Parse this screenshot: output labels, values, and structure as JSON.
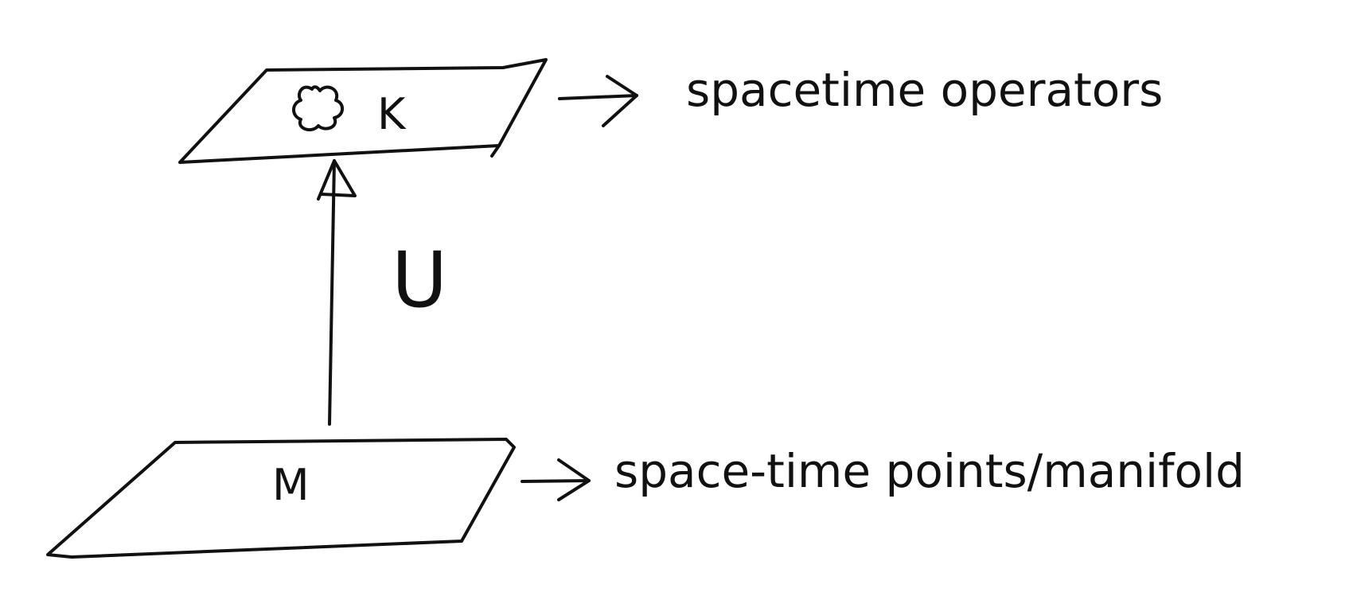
{
  "diagram": {
    "top_plane": {
      "label": "K",
      "annotation": "spacetime operators"
    },
    "bottom_plane": {
      "label": "M",
      "annotation": "space-time points/manifold"
    },
    "map": {
      "label": "U"
    },
    "icons": {
      "blob": "cloud-blob-icon",
      "top_arrow": "right-arrow-icon",
      "bottom_arrow": "right-arrow-icon"
    }
  }
}
